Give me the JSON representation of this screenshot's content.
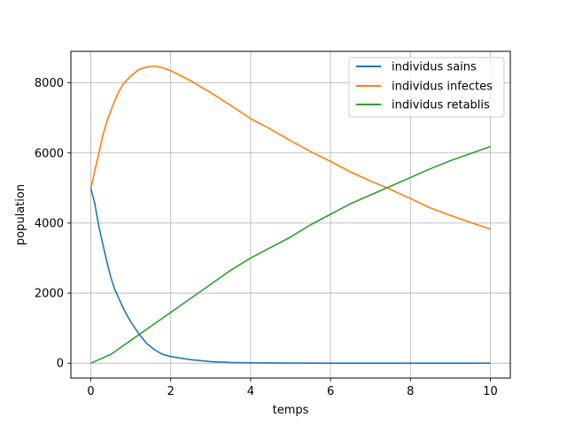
{
  "chart_data": {
    "type": "line",
    "title": "",
    "xlabel": "temps",
    "ylabel": "population",
    "xlim": [
      -0.5,
      10.5
    ],
    "ylim": [
      -425,
      8900
    ],
    "xticks": [
      0,
      2,
      4,
      6,
      8,
      10
    ],
    "yticks": [
      0,
      2000,
      4000,
      6000,
      8000
    ],
    "grid": true,
    "legend_position": "top-right",
    "series": [
      {
        "name": "individus sains",
        "color": "#1f77b4",
        "x": [
          0,
          0.1,
          0.2,
          0.3,
          0.4,
          0.5,
          0.6,
          0.7,
          0.8,
          0.9,
          1.0,
          1.2,
          1.4,
          1.6,
          1.8,
          2.0,
          2.5,
          3.0,
          3.5,
          4.0,
          5.0,
          6.0,
          7.0,
          8.0,
          9.0,
          10.0
        ],
        "y": [
          5000,
          4550,
          3900,
          3400,
          2900,
          2450,
          2100,
          1850,
          1600,
          1380,
          1180,
          840,
          560,
          380,
          250,
          190,
          100,
          45,
          20,
          10,
          3,
          1,
          0,
          0,
          0,
          0
        ]
      },
      {
        "name": "individus infectes",
        "color": "#ff7f0e",
        "x": [
          0,
          0.1,
          0.2,
          0.3,
          0.4,
          0.5,
          0.6,
          0.7,
          0.8,
          1.0,
          1.2,
          1.4,
          1.6,
          1.8,
          2.0,
          2.5,
          3.0,
          3.5,
          4.0,
          4.5,
          5.0,
          5.5,
          6.0,
          6.5,
          7.0,
          7.5,
          8.0,
          8.5,
          9.0,
          9.5,
          10.0
        ],
        "y": [
          5000,
          5500,
          6000,
          6500,
          6900,
          7200,
          7500,
          7750,
          7950,
          8200,
          8380,
          8450,
          8480,
          8430,
          8350,
          8060,
          7720,
          7360,
          6980,
          6680,
          6350,
          6040,
          5760,
          5460,
          5200,
          4960,
          4700,
          4430,
          4220,
          4020,
          3830
        ]
      },
      {
        "name": "individus retablis",
        "color": "#2ca02c",
        "x": [
          0,
          0.5,
          1.0,
          1.5,
          2.0,
          2.5,
          3.0,
          3.5,
          4.0,
          4.5,
          5.0,
          5.5,
          6.0,
          6.5,
          7.0,
          7.5,
          8.0,
          8.5,
          9.0,
          9.5,
          10.0
        ],
        "y": [
          0,
          250,
          650,
          1050,
          1450,
          1850,
          2250,
          2650,
          3000,
          3300,
          3600,
          3950,
          4250,
          4550,
          4800,
          5050,
          5300,
          5550,
          5780,
          5980,
          6180
        ]
      }
    ]
  }
}
